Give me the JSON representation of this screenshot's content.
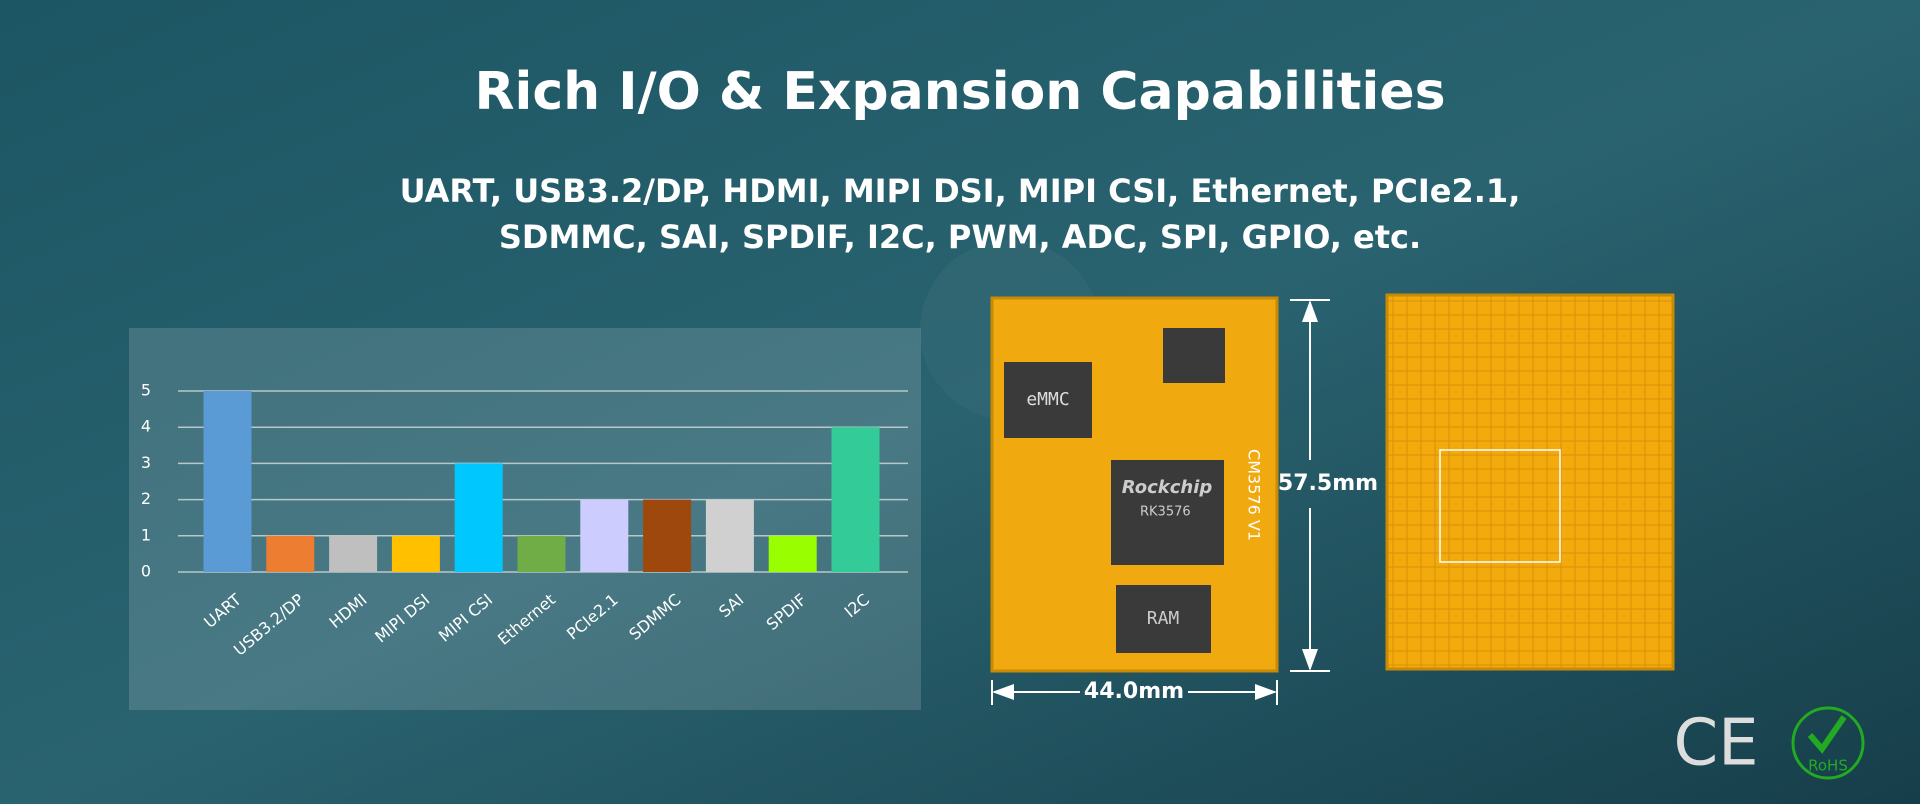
{
  "header": {
    "title": "Rich I/O & Expansion Capabilities",
    "subtitle": [
      "UART, USB3.2/DP, HDMI, MIPI DSI, MIPI CSI, Ethernet, PCIe2.1,",
      "SDMMC, SAI, SPDIF, I2C, PWM, ADC, SPI, GPIO, etc."
    ]
  },
  "chart_data": {
    "type": "bar",
    "categories": [
      "UART",
      "USB3.2/DP",
      "HDMI",
      "MIPI DSI",
      "MIPI CSI",
      "Ethernet",
      "PCIe2.1",
      "SDMMC",
      "SAI",
      "SPDIF",
      "I2C"
    ],
    "values": [
      5,
      1,
      1,
      1,
      3,
      1,
      2,
      2,
      2,
      1,
      4
    ],
    "colors": [
      "#5b9bd5",
      "#ed7d31",
      "#bfbfbf",
      "#ffc000",
      "#00c8ff",
      "#70ad47",
      "#ccccff",
      "#9e480e",
      "#d0d0d0",
      "#99ff00",
      "#33cc99"
    ],
    "ylim": [
      0,
      5
    ],
    "yticks": [
      0,
      1,
      2,
      3,
      4,
      5
    ],
    "grid": true
  },
  "board": {
    "front_labels": [
      "eMMC",
      "Rockchip",
      "RK3576",
      "RAM",
      "CM3576 V1"
    ],
    "height": "57.5mm",
    "width": "44.0mm"
  },
  "certifications": [
    "CE",
    "RoHS"
  ]
}
